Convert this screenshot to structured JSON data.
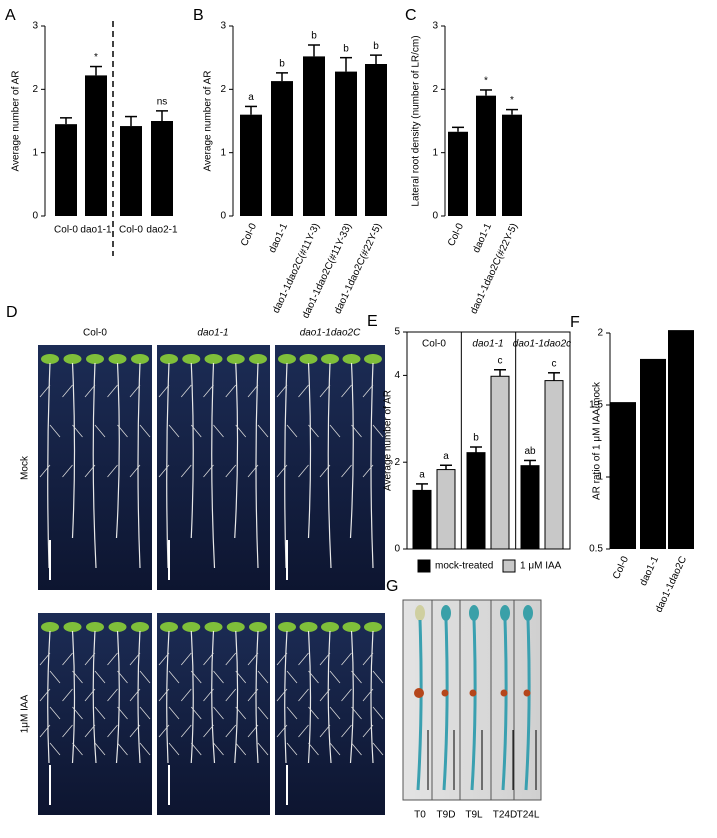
{
  "chart_data": [
    {
      "type": "bar",
      "panel": "A",
      "ylabel": "Average number of AR",
      "categories": [
        "Col-0",
        "dao1-1",
        "Col-0",
        "dao2-1"
      ],
      "values": [
        1.45,
        2.22,
        1.42,
        1.5
      ],
      "errors": [
        0.1,
        0.14,
        0.15,
        0.16
      ],
      "annotations": [
        null,
        "*",
        null,
        "ns"
      ],
      "color": "#000000",
      "ylim": [
        0,
        3
      ],
      "yticks": [
        0,
        1,
        2,
        3
      ],
      "divider": "dashed"
    },
    {
      "type": "bar",
      "panel": "B",
      "ylabel": "Average number of AR",
      "categories": [
        "Col-0",
        "dao1-1",
        "dao1-1dao2C(#11Y-3)",
        "dao1-1dao2C(#11Y-33)",
        "dao1-1dao2C(#22Y-5)"
      ],
      "values": [
        1.6,
        2.13,
        2.52,
        2.28,
        2.4
      ],
      "errors": [
        0.13,
        0.13,
        0.18,
        0.22,
        0.14
      ],
      "annotations": [
        "a",
        "b",
        "b",
        "b",
        "b"
      ],
      "color": "#000000",
      "ylim": [
        0,
        3
      ],
      "yticks": [
        0,
        1,
        2,
        3
      ]
    },
    {
      "type": "bar",
      "panel": "C",
      "ylabel": "Lateral root density (number of LR/cm)",
      "categories": [
        "Col-0",
        "dao1-1",
        "dao1-1dao2C(#22Y-5)"
      ],
      "values": [
        1.33,
        1.9,
        1.6
      ],
      "errors": [
        0.07,
        0.09,
        0.08
      ],
      "annotations": [
        null,
        "*",
        "*"
      ],
      "color": "#000000",
      "ylim": [
        0,
        3
      ],
      "yticks": [
        0,
        1,
        2,
        3
      ]
    },
    {
      "type": "grouped_bar",
      "panel": "E",
      "ylabel": "Average number of AR",
      "categories": [
        "Col-0",
        "dao1-1",
        "dao1-1dao2c"
      ],
      "series": [
        {
          "name": "mock-treated",
          "color": "#000000",
          "values": [
            1.35,
            2.22,
            1.92
          ],
          "errors": [
            0.15,
            0.13,
            0.12
          ],
          "annotations": [
            "a",
            "b",
            "ab"
          ]
        },
        {
          "name": "1 μM IAA",
          "color": "#c8c8c8",
          "values": [
            1.83,
            3.98,
            3.88
          ],
          "errors": [
            0.1,
            0.15,
            0.18
          ],
          "annotations": [
            "a",
            "c",
            "c"
          ]
        }
      ],
      "ylim": [
        0,
        5
      ],
      "yticks": [
        0,
        2,
        4,
        5
      ]
    },
    {
      "type": "bar",
      "panel": "F",
      "ylabel": "AR ratio of 1 μM IAA/mock",
      "categories": [
        "Col-0",
        "dao1-1",
        "dao1-1dao2C"
      ],
      "values": [
        1.52,
        1.82,
        2.02
      ],
      "color": "#000000",
      "ylim": [
        0.5,
        2
      ],
      "yticks": [
        0.5,
        1,
        1.5,
        2
      ]
    }
  ],
  "photos": {
    "D": {
      "panel": "D",
      "columns": [
        "Col-0",
        "dao1-1",
        "dao1-1dao2C"
      ],
      "rows": [
        "Mock",
        "1μM IAA"
      ]
    },
    "G": {
      "panel": "G",
      "samples": [
        "T0",
        "T9D",
        "T9L",
        "T24D",
        "T24L"
      ]
    }
  }
}
